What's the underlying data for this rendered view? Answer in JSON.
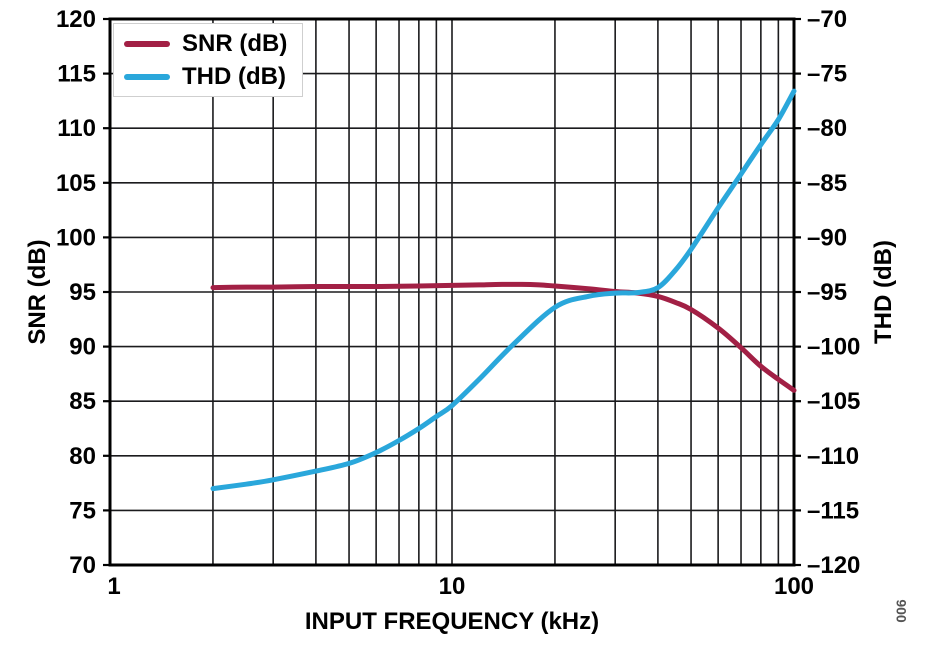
{
  "figure": {
    "figure_number": "006",
    "background": "#ffffff"
  },
  "legend": {
    "items": [
      {
        "label": "SNR (dB)",
        "color": "#A22045"
      },
      {
        "label": "THD (dB)",
        "color": "#2AA7DB"
      }
    ]
  },
  "axes": {
    "x": {
      "title": "INPUT FREQUENCY (kHz)",
      "scale": "log",
      "min": 1,
      "max": 100,
      "tick_values": [
        1,
        10,
        100
      ],
      "tick_labels": [
        "1",
        "10",
        "100"
      ]
    },
    "y_left": {
      "title": "SNR (dB)",
      "min": 70,
      "max": 120,
      "step": 5,
      "tick_values": [
        120,
        115,
        110,
        105,
        100,
        95,
        90,
        85,
        80,
        75,
        70
      ],
      "tick_labels": [
        "120",
        "115",
        "110",
        "105",
        "100",
        "95",
        "90",
        "85",
        "80",
        "75",
        "70"
      ]
    },
    "y_right": {
      "title": "THD (dB)",
      "min": -120,
      "max": -70,
      "step": 5,
      "tick_values": [
        -70,
        -75,
        -80,
        -85,
        -90,
        -95,
        -100,
        -105,
        -110,
        -115,
        -120
      ],
      "tick_labels": [
        "–70",
        "–75",
        "–80",
        "–85",
        "–90",
        "–95",
        "–100",
        "–105",
        "–110",
        "–115",
        "–120"
      ]
    }
  },
  "chart_data": {
    "type": "line",
    "title": "",
    "xlabel": "INPUT FREQUENCY (kHz)",
    "x_scale": "log",
    "xlim": [
      1,
      100
    ],
    "ylim_left": [
      70,
      120
    ],
    "ylim_right": [
      -120,
      -70
    ],
    "grid": true,
    "legend_position": "top-left",
    "series": [
      {
        "name": "SNR (dB)",
        "axis": "left",
        "color": "#A22045",
        "points": [
          [
            2,
            95.4
          ],
          [
            2.5,
            95.45
          ],
          [
            3,
            95.45
          ],
          [
            4,
            95.5
          ],
          [
            5,
            95.5
          ],
          [
            6,
            95.5
          ],
          [
            8,
            95.55
          ],
          [
            10,
            95.6
          ],
          [
            12,
            95.65
          ],
          [
            14,
            95.7
          ],
          [
            16,
            95.7
          ],
          [
            18,
            95.65
          ],
          [
            20,
            95.55
          ],
          [
            25,
            95.3
          ],
          [
            30,
            95.05
          ],
          [
            35,
            94.9
          ],
          [
            40,
            94.6
          ],
          [
            45,
            94.05
          ],
          [
            50,
            93.4
          ],
          [
            60,
            91.7
          ],
          [
            70,
            89.9
          ],
          [
            80,
            88.2
          ],
          [
            90,
            87.0
          ],
          [
            100,
            86.0
          ]
        ]
      },
      {
        "name": "THD (dB)",
        "axis": "right",
        "color": "#2AA7DB",
        "points": [
          [
            2,
            -113.0
          ],
          [
            2.5,
            -112.6
          ],
          [
            3,
            -112.2
          ],
          [
            4,
            -111.4
          ],
          [
            5,
            -110.7
          ],
          [
            6,
            -109.7
          ],
          [
            7,
            -108.6
          ],
          [
            8,
            -107.5
          ],
          [
            9,
            -106.4
          ],
          [
            10,
            -105.4
          ],
          [
            12,
            -103.0
          ],
          [
            15,
            -99.9
          ],
          [
            20,
            -96.4
          ],
          [
            25,
            -95.4
          ],
          [
            30,
            -95.1
          ],
          [
            35,
            -95.05
          ],
          [
            40,
            -94.6
          ],
          [
            45,
            -93.0
          ],
          [
            50,
            -91.1
          ],
          [
            60,
            -87.3
          ],
          [
            70,
            -84.2
          ],
          [
            80,
            -81.5
          ],
          [
            90,
            -79.2
          ],
          [
            100,
            -76.6
          ]
        ]
      }
    ]
  }
}
